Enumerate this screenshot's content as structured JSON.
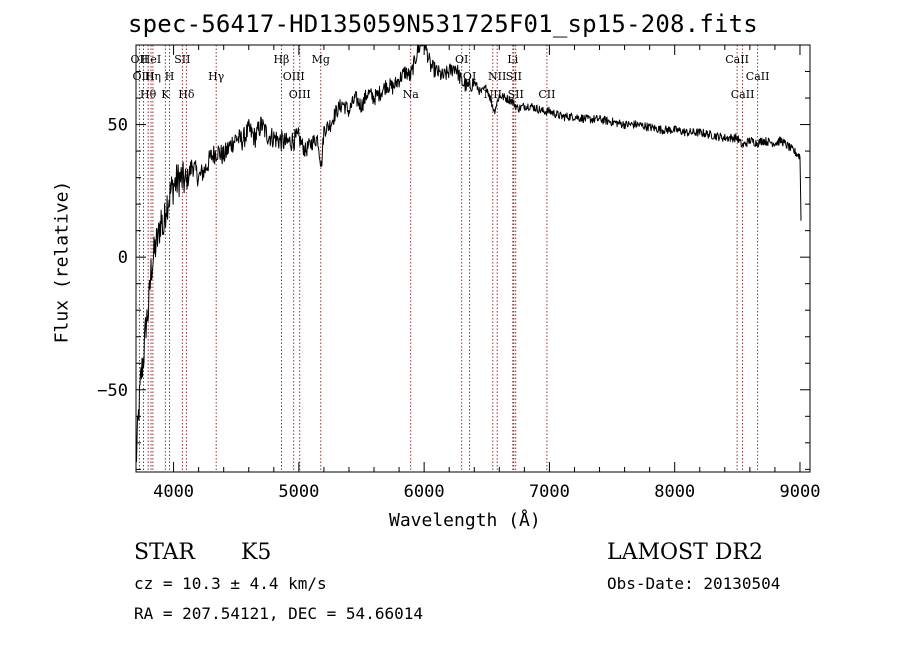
{
  "chart_data": {
    "type": "line",
    "title": "spec-56417-HD135059N531725F01_sp15-208.fits",
    "xlabel": "Wavelength (Å)",
    "ylabel": "Flux (relative)",
    "xlim": [
      3700,
      9080
    ],
    "ylim": [
      -81,
      80
    ],
    "xticks": [
      4000,
      5000,
      6000,
      7000,
      8000,
      9000
    ],
    "yticks": [
      -50,
      0,
      50
    ],
    "ytick_labels": [
      "−50",
      "0",
      "50"
    ],
    "grid": false,
    "line_color": "#000000",
    "marker_line_color": "#8b1a1a",
    "series": [
      {
        "x": [
          3700,
          3720,
          3740,
          3760,
          3780,
          3800,
          3820,
          3840,
          3860,
          3880,
          3900,
          3920,
          3940,
          3960,
          3980,
          4000,
          4050,
          4100,
          4150,
          4200,
          4250,
          4300,
          4350,
          4400,
          4450,
          4500,
          4550,
          4600,
          4650,
          4700,
          4750,
          4800,
          4850,
          4900,
          4950,
          5000,
          5050,
          5100,
          5150,
          5180,
          5200,
          5250,
          5300,
          5350,
          5400,
          5450,
          5500,
          5550,
          5600,
          5650,
          5700,
          5750,
          5800,
          5850,
          5890,
          5920,
          5950,
          6000,
          6050,
          6100,
          6150,
          6200,
          6250,
          6300,
          6350,
          6400,
          6450,
          6500,
          6560,
          6600,
          6650,
          6700,
          6750,
          6800,
          6850,
          6900,
          6950,
          7000,
          7100,
          7200,
          7300,
          7400,
          7500,
          7600,
          7700,
          7800,
          7900,
          8000,
          8100,
          8200,
          8300,
          8400,
          8500,
          8540,
          8600,
          8660,
          8700,
          8800,
          8850,
          8900,
          8950,
          9000,
          9010
        ],
        "y": [
          -78,
          -60,
          -45,
          -38,
          -25,
          -20,
          -5,
          0,
          5,
          8,
          15,
          10,
          20,
          22,
          25,
          27,
          30,
          28,
          35,
          30,
          33,
          38,
          40,
          38,
          42,
          45,
          44,
          48,
          45,
          50,
          46,
          45,
          44,
          43,
          44,
          45,
          40,
          43,
          45,
          34,
          48,
          50,
          55,
          58,
          55,
          60,
          57,
          62,
          60,
          62,
          65,
          64,
          67,
          70,
          68,
          73,
          78,
          82,
          72,
          70,
          68,
          70,
          72,
          66,
          64,
          66,
          62,
          64,
          55,
          61,
          60,
          59,
          56,
          57,
          57,
          56,
          55,
          55,
          53,
          53,
          52,
          52,
          51,
          50,
          50,
          49,
          48,
          48,
          47,
          47,
          46,
          45,
          45,
          42,
          44,
          43,
          44,
          43,
          44,
          42,
          40,
          38,
          8
        ]
      }
    ],
    "line_markers": [
      {
        "label": "OII",
        "x": 3727,
        "row": 0
      },
      {
        "label": "HeI",
        "x": 3820,
        "row": 0
      },
      {
        "label": "SII",
        "x": 4070,
        "row": 0
      },
      {
        "label": "Hβ",
        "x": 4861,
        "row": 0
      },
      {
        "label": "Mg",
        "x": 5175,
        "row": 0
      },
      {
        "label": "OI",
        "x": 6300,
        "row": 0
      },
      {
        "label": "Li",
        "x": 6708,
        "row": 0
      },
      {
        "label": "CaII",
        "x": 8498,
        "row": 0
      },
      {
        "label": "OIII",
        "x": 3760,
        "row": 1
      },
      {
        "label": "Hη",
        "x": 3835,
        "row": 1
      },
      {
        "label": "H",
        "x": 3968,
        "row": 1
      },
      {
        "label": "Hγ",
        "x": 4340,
        "row": 1
      },
      {
        "label": "OIII",
        "x": 4959,
        "row": 1
      },
      {
        "label": "OI",
        "x": 6363,
        "row": 1
      },
      {
        "label": "NII",
        "x": 6583,
        "row": 1
      },
      {
        "label": "SII",
        "x": 6716,
        "row": 1
      },
      {
        "label": "CaII",
        "x": 8662,
        "row": 1
      },
      {
        "label": "Hθ",
        "x": 3797,
        "row": 2
      },
      {
        "label": "K",
        "x": 3934,
        "row": 2
      },
      {
        "label": "Hδ",
        "x": 4102,
        "row": 2
      },
      {
        "label": "OIII",
        "x": 5007,
        "row": 2
      },
      {
        "label": "Na",
        "x": 5893,
        "row": 2
      },
      {
        "label": "NII",
        "x": 6548,
        "row": 2
      },
      {
        "label": "SII",
        "x": 6731,
        "row": 2
      },
      {
        "label": "CII",
        "x": 6980,
        "row": 2
      },
      {
        "label": "CaII",
        "x": 8542,
        "row": 2
      }
    ]
  },
  "info": {
    "object_class": "STAR",
    "subclass": "K5",
    "survey": "LAMOST DR2",
    "cz": "cz = 10.3 ± 4.4 km/s",
    "obs_date": "Obs-Date: 20130504",
    "radec": "RA = 207.54121, DEC =  54.66014"
  }
}
